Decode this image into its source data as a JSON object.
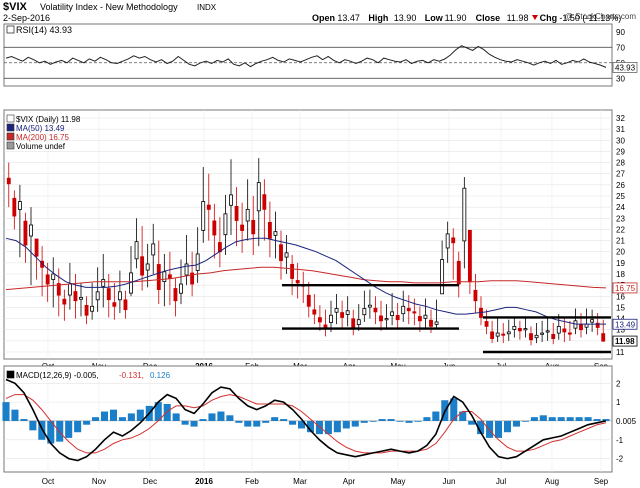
{
  "header": {
    "symbol": "$VIX",
    "name": "Volatility Index - New Methodology",
    "exchange": "INDX",
    "date": "2-Sep-2016",
    "watermark": "@ StockCharts.com",
    "quote": [
      {
        "label": "Open",
        "value": "13.47"
      },
      {
        "label": "High",
        "value": "13.90"
      },
      {
        "label": "Low",
        "value": "11.90"
      },
      {
        "label": "Close",
        "value": "11.98"
      },
      {
        "label": "Chg",
        "value": "-1.50 (-11.13%)"
      }
    ],
    "quote_arrow": "down-arrow-icon"
  },
  "colors": {
    "candle_up": "#000000",
    "candle_down": "#cc0000",
    "ma50": "#1a237e",
    "ma200": "#c62828",
    "macd": "#000000",
    "signal": "#d32f2f",
    "histogram": "#1a7fc8",
    "rsi": "#222222",
    "annotation": "#000000"
  },
  "chart_data": [
    {
      "type": "line",
      "panel": "rsi",
      "legend": "RSI(14) 43.93",
      "ylim": [
        20,
        100
      ],
      "yticks": [
        "90",
        "70",
        "50",
        "30"
      ],
      "reference_lines": [
        70,
        50,
        30
      ],
      "last_value_label": "43.93",
      "series": [
        {
          "name": "RSI(14)",
          "values": [
            56,
            58,
            55,
            52,
            57,
            54,
            50,
            52,
            48,
            51,
            53,
            50,
            56,
            53,
            50,
            55,
            52,
            57,
            54,
            50,
            49,
            52,
            55,
            59,
            56,
            58,
            54,
            51,
            54,
            49,
            52,
            58,
            53,
            48,
            46,
            50,
            52,
            49,
            53,
            51,
            55,
            48,
            46,
            50,
            45,
            49,
            52,
            54,
            57,
            53,
            51,
            55,
            53,
            51,
            54,
            57,
            59,
            54,
            58,
            53,
            50,
            54,
            52,
            49,
            52,
            56,
            54,
            50,
            56,
            54,
            52,
            51,
            54,
            49,
            52,
            53,
            50,
            54,
            52,
            55,
            60,
            67,
            72,
            69,
            66,
            71,
            67,
            61,
            57,
            54,
            52,
            51,
            54,
            52,
            50,
            47,
            50,
            52,
            49,
            53,
            48,
            50,
            53,
            51,
            55,
            51,
            49,
            47,
            44
          ]
        }
      ]
    },
    {
      "type": "candlestick",
      "panel": "price",
      "legend": [
        "$VIX (Daily) 11.98",
        "MA(50) 13.49",
        "MA(200) 16.75",
        "Volume undef"
      ],
      "ylim": [
        11,
        32
      ],
      "yticks": [
        "32",
        "31",
        "30",
        "29",
        "28",
        "27",
        "26",
        "25",
        "24",
        "23",
        "22",
        "21",
        "20",
        "19",
        "18",
        "17",
        "16",
        "15",
        "14",
        "13",
        "12",
        "11"
      ],
      "price_labels": [
        {
          "text": "16.75",
          "value": 16.75
        },
        {
          "text": "13.49",
          "value": 13.49
        },
        {
          "text": "11.98",
          "value": 11.98
        }
      ],
      "x_labels": [
        "Oct",
        "Nov",
        "Dec",
        "2016",
        "Feb",
        "Mar",
        "Apr",
        "May",
        "Jun",
        "Jul",
        "Aug",
        "Sep"
      ],
      "close": [
        26.1,
        23.2,
        24.5,
        20.6,
        22.4,
        19.6,
        18.6,
        17.1,
        18.0,
        16.1,
        15.3,
        17.1,
        15.6,
        15.9,
        14.3,
        15.1,
        16.4,
        17.5,
        15.7,
        15.1,
        16.4,
        14.8,
        18.1,
        20.9,
        17.9,
        18.9,
        20.7,
        16.6,
        18.2,
        17.6,
        15.6,
        17.1,
        18.9,
        17.1,
        19.8,
        24.5,
        23.8,
        21.5,
        20.0,
        23.4,
        25.1,
        22.8,
        21.9,
        23.8,
        21.6,
        26.2,
        23.8,
        21.2,
        21.8,
        19.2,
        19.9,
        17.6,
        17.2,
        16.9,
        15.1,
        14.4,
        13.7,
        13.1,
        14.3,
        14.9,
        14.1,
        14.7,
        13.1,
        13.9,
        14.9,
        15.2,
        14.6,
        13.8,
        14.0,
        14.6,
        13.9,
        15.1,
        14.7,
        14.5,
        13.8,
        14.3,
        13.3,
        13.7,
        19.3,
        21.6,
        20.8,
        17.1,
        25.7,
        17.3,
        15.6,
        14.1,
        13.3,
        12.2,
        12.7,
        12.5,
        12.8,
        13.3,
        12.9,
        13.1,
        12.1,
        12.5,
        12.7,
        12.9,
        12.2,
        13.3,
        12.8,
        12.6,
        13.8,
        13.0,
        13.5,
        13.9,
        13.2,
        11.98
      ],
      "ranges": [
        [
          24.0,
          28.0
        ],
        [
          22.0,
          25.5
        ],
        [
          19.5,
          26.0
        ],
        [
          19.0,
          23.5
        ],
        [
          17.0,
          24.0
        ],
        [
          17.5,
          21.0
        ],
        [
          16.0,
          20.5
        ],
        [
          15.5,
          19.0
        ],
        [
          15.0,
          19.5
        ],
        [
          14.2,
          18.5
        ],
        [
          13.8,
          16.6
        ],
        [
          14.8,
          19.0
        ],
        [
          14.0,
          18.0
        ],
        [
          14.2,
          17.2
        ],
        [
          13.5,
          16.0
        ],
        [
          13.9,
          17.2
        ],
        [
          14.6,
          18.6
        ],
        [
          15.0,
          19.8
        ],
        [
          14.1,
          18.0
        ],
        [
          13.9,
          17.2
        ],
        [
          14.5,
          18.3
        ],
        [
          14.0,
          16.5
        ],
        [
          16.0,
          20.5
        ],
        [
          18.5,
          23.0
        ],
        [
          16.5,
          22.3
        ],
        [
          16.8,
          20.7
        ],
        [
          18.0,
          22.5
        ],
        [
          15.3,
          21.0
        ],
        [
          15.1,
          19.8
        ],
        [
          15.2,
          20.0
        ],
        [
          14.2,
          17.6
        ],
        [
          15.3,
          19.3
        ],
        [
          17.0,
          21.5
        ],
        [
          16.0,
          20.0
        ],
        [
          17.2,
          22.2
        ],
        [
          20.8,
          27.6
        ],
        [
          21.0,
          27.0
        ],
        [
          19.4,
          24.3
        ],
        [
          18.6,
          23.1
        ],
        [
          19.7,
          25.1
        ],
        [
          21.5,
          28.3
        ],
        [
          20.5,
          25.8
        ],
        [
          19.9,
          24.4
        ],
        [
          21.0,
          26.5
        ],
        [
          19.7,
          25.0
        ],
        [
          20.5,
          28.4
        ],
        [
          21.0,
          26.5
        ],
        [
          19.5,
          24.5
        ],
        [
          19.4,
          23.6
        ],
        [
          17.5,
          21.9
        ],
        [
          18.0,
          21.5
        ],
        [
          16.1,
          19.7
        ],
        [
          15.8,
          19.0
        ],
        [
          15.4,
          18.2
        ],
        [
          14.1,
          17.3
        ],
        [
          13.5,
          16.2
        ],
        [
          12.9,
          15.2
        ],
        [
          12.4,
          14.8
        ],
        [
          12.8,
          15.6
        ],
        [
          13.5,
          16.2
        ],
        [
          13.2,
          15.6
        ],
        [
          13.3,
          16.0
        ],
        [
          12.5,
          14.8
        ],
        [
          12.9,
          15.3
        ],
        [
          13.7,
          16.5
        ],
        [
          14.0,
          16.6
        ],
        [
          13.5,
          16.0
        ],
        [
          12.9,
          15.6
        ],
        [
          13.0,
          15.3
        ],
        [
          13.4,
          16.3
        ],
        [
          13.0,
          15.4
        ],
        [
          13.7,
          16.5
        ],
        [
          13.5,
          16.1
        ],
        [
          13.4,
          15.8
        ],
        [
          12.8,
          15.1
        ],
        [
          13.0,
          15.8
        ],
        [
          12.7,
          14.8
        ],
        [
          13.2,
          15.7
        ],
        [
          16.5,
          21.0
        ],
        [
          19.0,
          22.7
        ],
        [
          17.5,
          22.1
        ],
        [
          15.9,
          20.0
        ],
        [
          18.5,
          26.7
        ],
        [
          16.2,
          21.5
        ],
        [
          14.5,
          18.0
        ],
        [
          13.4,
          16.0
        ],
        [
          12.6,
          14.8
        ],
        [
          11.8,
          13.8
        ],
        [
          11.9,
          14.0
        ],
        [
          11.8,
          13.6
        ],
        [
          12.0,
          13.9
        ],
        [
          12.3,
          14.1
        ],
        [
          12.1,
          13.8
        ],
        [
          12.3,
          14.2
        ],
        [
          11.6,
          13.3
        ],
        [
          11.8,
          13.6
        ],
        [
          11.9,
          13.8
        ],
        [
          12.0,
          14.1
        ],
        [
          11.7,
          13.6
        ],
        [
          12.1,
          14.4
        ],
        [
          11.9,
          14.0
        ],
        [
          12.0,
          13.8
        ],
        [
          12.6,
          14.9
        ],
        [
          12.3,
          14.5
        ],
        [
          12.6,
          14.9
        ],
        [
          12.8,
          14.8
        ],
        [
          12.5,
          14.5
        ],
        [
          11.9,
          13.9
        ]
      ],
      "series": [
        {
          "name": "MA(50)",
          "values": [
            21.2,
            21.0,
            20.4,
            19.5,
            18.6,
            17.9,
            17.3,
            17.0,
            16.8,
            16.8,
            16.8,
            16.9,
            17.1,
            17.4,
            17.7,
            18.0,
            18.3,
            18.5,
            18.7,
            18.8,
            19.2,
            19.8,
            20.4,
            20.9,
            21.1,
            21.2,
            21.2,
            21.0,
            20.8,
            20.6,
            20.3,
            20.0,
            19.6,
            19.2,
            18.6,
            18.0,
            17.4,
            16.8,
            16.3,
            15.9,
            15.6,
            15.3,
            15.1,
            14.8,
            14.6,
            14.4,
            14.4,
            14.5,
            14.6,
            14.8,
            15.0,
            15.0,
            14.8,
            14.6,
            14.2,
            13.9,
            13.7,
            13.5,
            13.5,
            13.5,
            13.5
          ]
        },
        {
          "name": "MA(200)",
          "values": [
            16.6,
            16.7,
            16.8,
            16.9,
            17.0,
            17.1,
            17.2,
            17.3,
            17.3,
            17.3,
            17.3,
            17.4,
            17.5,
            17.6,
            17.8,
            18.0,
            18.1,
            18.3,
            18.4,
            18.5,
            18.6,
            18.6,
            18.5,
            18.4,
            18.3,
            18.1,
            17.9,
            17.7,
            17.5,
            17.4,
            17.3,
            17.3,
            17.2,
            17.2,
            17.2,
            17.3,
            17.3,
            17.3,
            17.4,
            17.4,
            17.4,
            17.3,
            17.2,
            17.1,
            17.0,
            16.9,
            16.8,
            16.75
          ]
        }
      ],
      "annotations": [
        {
          "type": "horizontal_line",
          "value": 17.0,
          "from": "Mar",
          "to": "Jun"
        },
        {
          "type": "horizontal_line",
          "value": 13.1,
          "from": "Mar",
          "to": "Jun"
        },
        {
          "type": "horizontal_line",
          "value": 14.1,
          "from": "Jul",
          "to": "Sep"
        },
        {
          "type": "horizontal_line",
          "value": 11.0,
          "from": "Jul",
          "to": "Sep"
        }
      ]
    },
    {
      "type": "line",
      "panel": "macd",
      "legend": [
        {
          "text": "MACD(12,26,9)",
          "value": "-0.005"
        },
        {
          "value": "-0.131"
        },
        {
          "value": "0.126"
        }
      ],
      "ylim": [
        -2.5,
        2.6
      ],
      "yticks": [
        "2",
        "1",
        "0.005",
        "-1",
        "-2"
      ],
      "x_labels": [
        "Oct",
        "Nov",
        "Dec",
        "2016",
        "Feb",
        "Mar",
        "Apr",
        "May",
        "Jun",
        "Jul",
        "Aug",
        "Sep"
      ],
      "series": [
        {
          "name": "MACD",
          "values": [
            2.2,
            2.0,
            1.5,
            0.6,
            -0.4,
            -1.2,
            -1.7,
            -2.0,
            -2.1,
            -1.9,
            -1.5,
            -1.0,
            -0.6,
            -0.8,
            -0.5,
            -0.1,
            0.4,
            1.0,
            1.4,
            1.2,
            0.6,
            0.4,
            0.9,
            1.5,
            1.8,
            1.7,
            1.2,
            0.8,
            0.6,
            0.8,
            1.1,
            1.0,
            0.6,
            0.1,
            -0.5,
            -1.0,
            -1.4,
            -1.7,
            -1.8,
            -1.9,
            -1.8,
            -1.7,
            -1.6,
            -1.5,
            -1.6,
            -1.7,
            -1.6,
            -1.3,
            -0.7,
            0.5,
            1.3,
            1.0,
            0.3,
            -0.6,
            -1.4,
            -1.9,
            -2.0,
            -1.9,
            -1.6,
            -1.3,
            -1.0,
            -0.9,
            -0.8,
            -0.6,
            -0.4,
            -0.2,
            -0.1,
            0.0
          ]
        },
        {
          "name": "Signal",
          "values": [
            1.2,
            1.4,
            1.4,
            1.1,
            0.6,
            0.0,
            -0.6,
            -1.1,
            -1.5,
            -1.7,
            -1.7,
            -1.5,
            -1.2,
            -1.0,
            -0.9,
            -0.7,
            -0.4,
            0.0,
            0.5,
            0.8,
            0.8,
            0.7,
            0.8,
            1.1,
            1.3,
            1.4,
            1.3,
            1.1,
            0.9,
            0.9,
            0.9,
            0.9,
            0.8,
            0.5,
            0.1,
            -0.3,
            -0.7,
            -1.1,
            -1.4,
            -1.6,
            -1.7,
            -1.7,
            -1.7,
            -1.6,
            -1.6,
            -1.6,
            -1.6,
            -1.5,
            -1.2,
            -0.6,
            0.1,
            0.5,
            0.5,
            0.1,
            -0.5,
            -1.0,
            -1.4,
            -1.6,
            -1.6,
            -1.5,
            -1.3,
            -1.1,
            -1.0,
            -0.8,
            -0.6,
            -0.4,
            -0.2,
            -0.1
          ]
        },
        {
          "name": "Histogram",
          "values": [
            1.0,
            0.6,
            0.1,
            -0.5,
            -1.0,
            -1.2,
            -1.1,
            -0.9,
            -0.6,
            -0.2,
            0.2,
            0.5,
            0.6,
            0.2,
            0.4,
            0.6,
            0.8,
            1.0,
            0.9,
            0.4,
            -0.2,
            -0.3,
            0.1,
            0.4,
            0.5,
            0.3,
            -0.1,
            -0.3,
            -0.3,
            -0.1,
            0.2,
            0.1,
            -0.2,
            -0.4,
            -0.6,
            -0.7,
            -0.7,
            -0.6,
            -0.4,
            -0.3,
            -0.1,
            0.0,
            0.1,
            0.1,
            0.0,
            -0.1,
            0.0,
            0.2,
            0.5,
            1.1,
            1.2,
            0.5,
            -0.2,
            -0.7,
            -0.9,
            -0.9,
            -0.6,
            -0.3,
            0.0,
            0.2,
            0.3,
            0.2,
            0.2,
            0.2,
            0.2,
            0.2,
            0.1,
            0.1
          ]
        }
      ]
    }
  ]
}
